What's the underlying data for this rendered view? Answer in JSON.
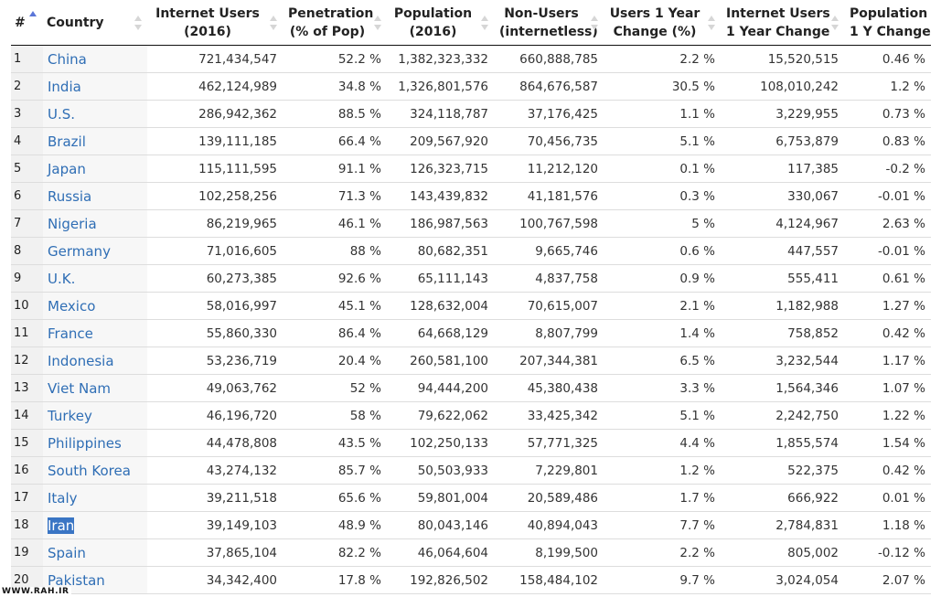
{
  "table": {
    "headers": {
      "num": "#",
      "country": "Country",
      "internet_users": [
        "Internet Users",
        "(2016)"
      ],
      "penetration": [
        "Penetration",
        "(% of Pop)"
      ],
      "population": [
        "Population",
        "(2016)"
      ],
      "non_users": [
        "Non-Users",
        "(internetless)"
      ],
      "users_change": [
        "Users 1 Year",
        "Change (%)"
      ],
      "users_change_abs": [
        "Internet Users",
        "1 Year Change"
      ],
      "pop_change": [
        "Population",
        "1 Y Change"
      ]
    },
    "sort": {
      "column": "num",
      "direction": "ascending"
    },
    "rows": [
      [
        "1",
        "China",
        "721,434,547",
        "52.2 %",
        "1,382,323,332",
        "660,888,785",
        "2.2 %",
        "15,520,515",
        "0.46 %"
      ],
      [
        "2",
        "India",
        "462,124,989",
        "34.8 %",
        "1,326,801,576",
        "864,676,587",
        "30.5 %",
        "108,010,242",
        "1.2 %"
      ],
      [
        "3",
        "U.S.",
        "286,942,362",
        "88.5 %",
        "324,118,787",
        "37,176,425",
        "1.1 %",
        "3,229,955",
        "0.73 %"
      ],
      [
        "4",
        "Brazil",
        "139,111,185",
        "66.4 %",
        "209,567,920",
        "70,456,735",
        "5.1 %",
        "6,753,879",
        "0.83 %"
      ],
      [
        "5",
        "Japan",
        "115,111,595",
        "91.1 %",
        "126,323,715",
        "11,212,120",
        "0.1 %",
        "117,385",
        "-0.2 %"
      ],
      [
        "6",
        "Russia",
        "102,258,256",
        "71.3 %",
        "143,439,832",
        "41,181,576",
        "0.3 %",
        "330,067",
        "-0.01 %"
      ],
      [
        "7",
        "Nigeria",
        "86,219,965",
        "46.1 %",
        "186,987,563",
        "100,767,598",
        "5 %",
        "4,124,967",
        "2.63 %"
      ],
      [
        "8",
        "Germany",
        "71,016,605",
        "88 %",
        "80,682,351",
        "9,665,746",
        "0.6 %",
        "447,557",
        "-0.01 %"
      ],
      [
        "9",
        "U.K.",
        "60,273,385",
        "92.6 %",
        "65,111,143",
        "4,837,758",
        "0.9 %",
        "555,411",
        "0.61 %"
      ],
      [
        "10",
        "Mexico",
        "58,016,997",
        "45.1 %",
        "128,632,004",
        "70,615,007",
        "2.1 %",
        "1,182,988",
        "1.27 %"
      ],
      [
        "11",
        "France",
        "55,860,330",
        "86.4 %",
        "64,668,129",
        "8,807,799",
        "1.4 %",
        "758,852",
        "0.42 %"
      ],
      [
        "12",
        "Indonesia",
        "53,236,719",
        "20.4 %",
        "260,581,100",
        "207,344,381",
        "6.5 %",
        "3,232,544",
        "1.17 %"
      ],
      [
        "13",
        "Viet Nam",
        "49,063,762",
        "52 %",
        "94,444,200",
        "45,380,438",
        "3.3 %",
        "1,564,346",
        "1.07 %"
      ],
      [
        "14",
        "Turkey",
        "46,196,720",
        "58 %",
        "79,622,062",
        "33,425,342",
        "5.1 %",
        "2,242,750",
        "1.22 %"
      ],
      [
        "15",
        "Philippines",
        "44,478,808",
        "43.5 %",
        "102,250,133",
        "57,771,325",
        "4.4 %",
        "1,855,574",
        "1.54 %"
      ],
      [
        "16",
        "South Korea",
        "43,274,132",
        "85.7 %",
        "50,503,933",
        "7,229,801",
        "1.2 %",
        "522,375",
        "0.42 %"
      ],
      [
        "17",
        "Italy",
        "39,211,518",
        "65.6 %",
        "59,801,004",
        "20,589,486",
        "1.7 %",
        "666,922",
        "0.01 %"
      ],
      [
        "18",
        "Iran",
        "39,149,103",
        "48.9 %",
        "80,043,146",
        "40,894,043",
        "7.7 %",
        "2,784,831",
        "1.18 %"
      ],
      [
        "19",
        "Spain",
        "37,865,104",
        "82.2 %",
        "46,064,604",
        "8,199,500",
        "2.2 %",
        "805,002",
        "-0.12 %"
      ],
      [
        "20",
        "Pakistan",
        "34,342,400",
        "17.8 %",
        "192,826,502",
        "158,484,102",
        "9.7 %",
        "3,024,054",
        "2.07 %"
      ]
    ],
    "highlighted_row": 17
  },
  "watermark": "WWW.RAH.IR",
  "colors": {
    "link": "#2f6eb5",
    "sort_active": "#5b76d8",
    "sort_inactive": "#d6d6d6",
    "highlight": "#3a75c4"
  }
}
